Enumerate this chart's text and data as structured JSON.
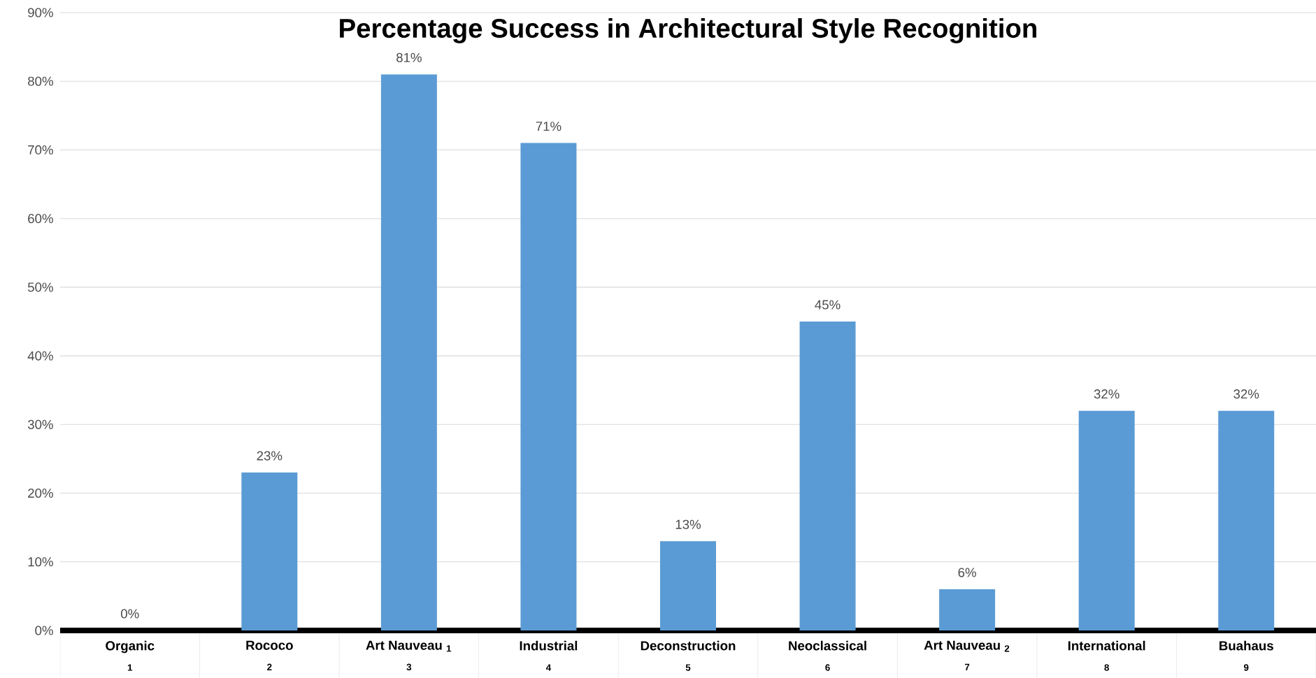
{
  "chart_data": {
    "type": "bar",
    "title": "Percentage Success in Architectural Style Recognition",
    "categories": [
      "Organic",
      "Rococo",
      "Art Nauveau $_{1}$",
      "Industrial",
      "Deconstruction",
      "Neoclassical",
      "Art Nauveau $_{2}$",
      "International",
      "Buahaus"
    ],
    "annotations": [
      "1",
      "2",
      "3",
      "4",
      "5",
      "6",
      "7",
      "8",
      "9"
    ],
    "values": [
      0,
      23,
      81,
      71,
      13,
      45,
      6,
      32,
      32
    ],
    "color": "#5b9bd5",
    "ylim": [
      0,
      90
    ],
    "yticks": [
      {
        "value": 0,
        "label": "0%"
      },
      {
        "value": 10,
        "label": "10%"
      },
      {
        "value": 20,
        "label": "20%"
      },
      {
        "value": 30,
        "label": "30%"
      },
      {
        "value": 40,
        "label": "40%"
      },
      {
        "value": 50,
        "label": "50%"
      },
      {
        "value": 60,
        "label": "60%"
      },
      {
        "value": 70,
        "label": "70%"
      },
      {
        "value": 80,
        "label": "80%"
      },
      {
        "value": 90,
        "label": "90%"
      }
    ],
    "value_labels": [
      "0%",
      "23%",
      "81%",
      "71%",
      "13%",
      "45%",
      "6%",
      "32%",
      "32%"
    ],
    "grid": "y"
  }
}
